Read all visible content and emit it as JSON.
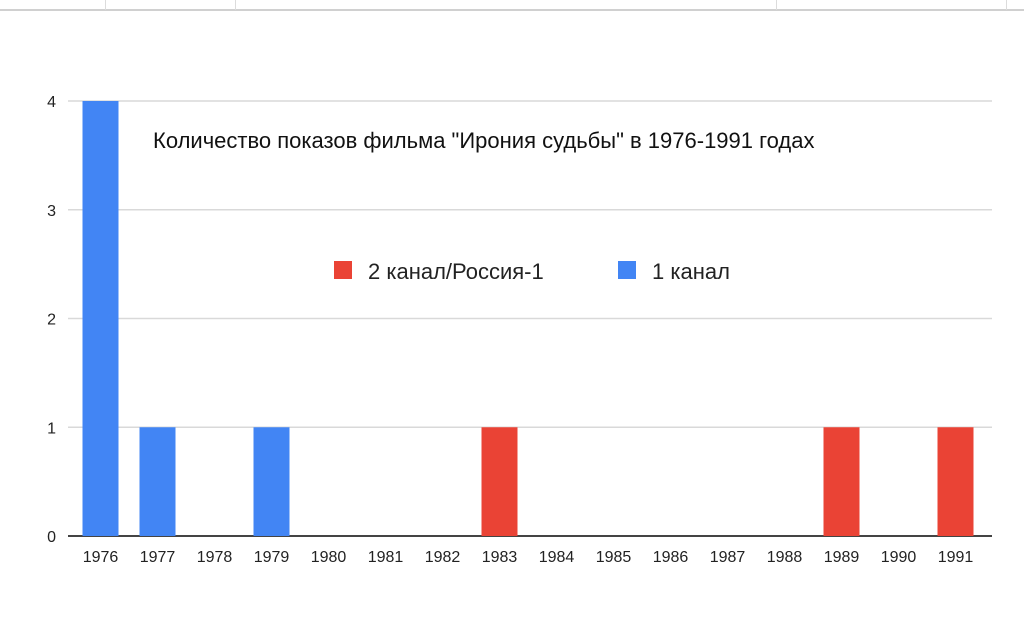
{
  "chart_data": {
    "type": "bar",
    "title": "Количество показов фильма \"Ирония судьбы\" в 1976-1991 годах",
    "xlabel": "",
    "ylabel": "",
    "categories": [
      "1976",
      "1977",
      "1978",
      "1979",
      "1980",
      "1981",
      "1982",
      "1983",
      "1984",
      "1985",
      "1986",
      "1987",
      "1988",
      "1989",
      "1990",
      "1991"
    ],
    "series": [
      {
        "name": "2 канал/Россия-1",
        "color": "#ea4335",
        "values": [
          0,
          0,
          0,
          0,
          0,
          0,
          0,
          1,
          0,
          0,
          0,
          0,
          0,
          1,
          0,
          1
        ]
      },
      {
        "name": "1 канал",
        "color": "#4285f4",
        "values": [
          4,
          1,
          0,
          1,
          0,
          0,
          0,
          0,
          0,
          0,
          0,
          0,
          0,
          0,
          0,
          0
        ]
      }
    ],
    "ylim": [
      0,
      4
    ],
    "yticks": [
      "0",
      "1",
      "2",
      "3",
      "4"
    ],
    "grid": true,
    "legend_placement": "inside-top-center",
    "stacked": true
  }
}
